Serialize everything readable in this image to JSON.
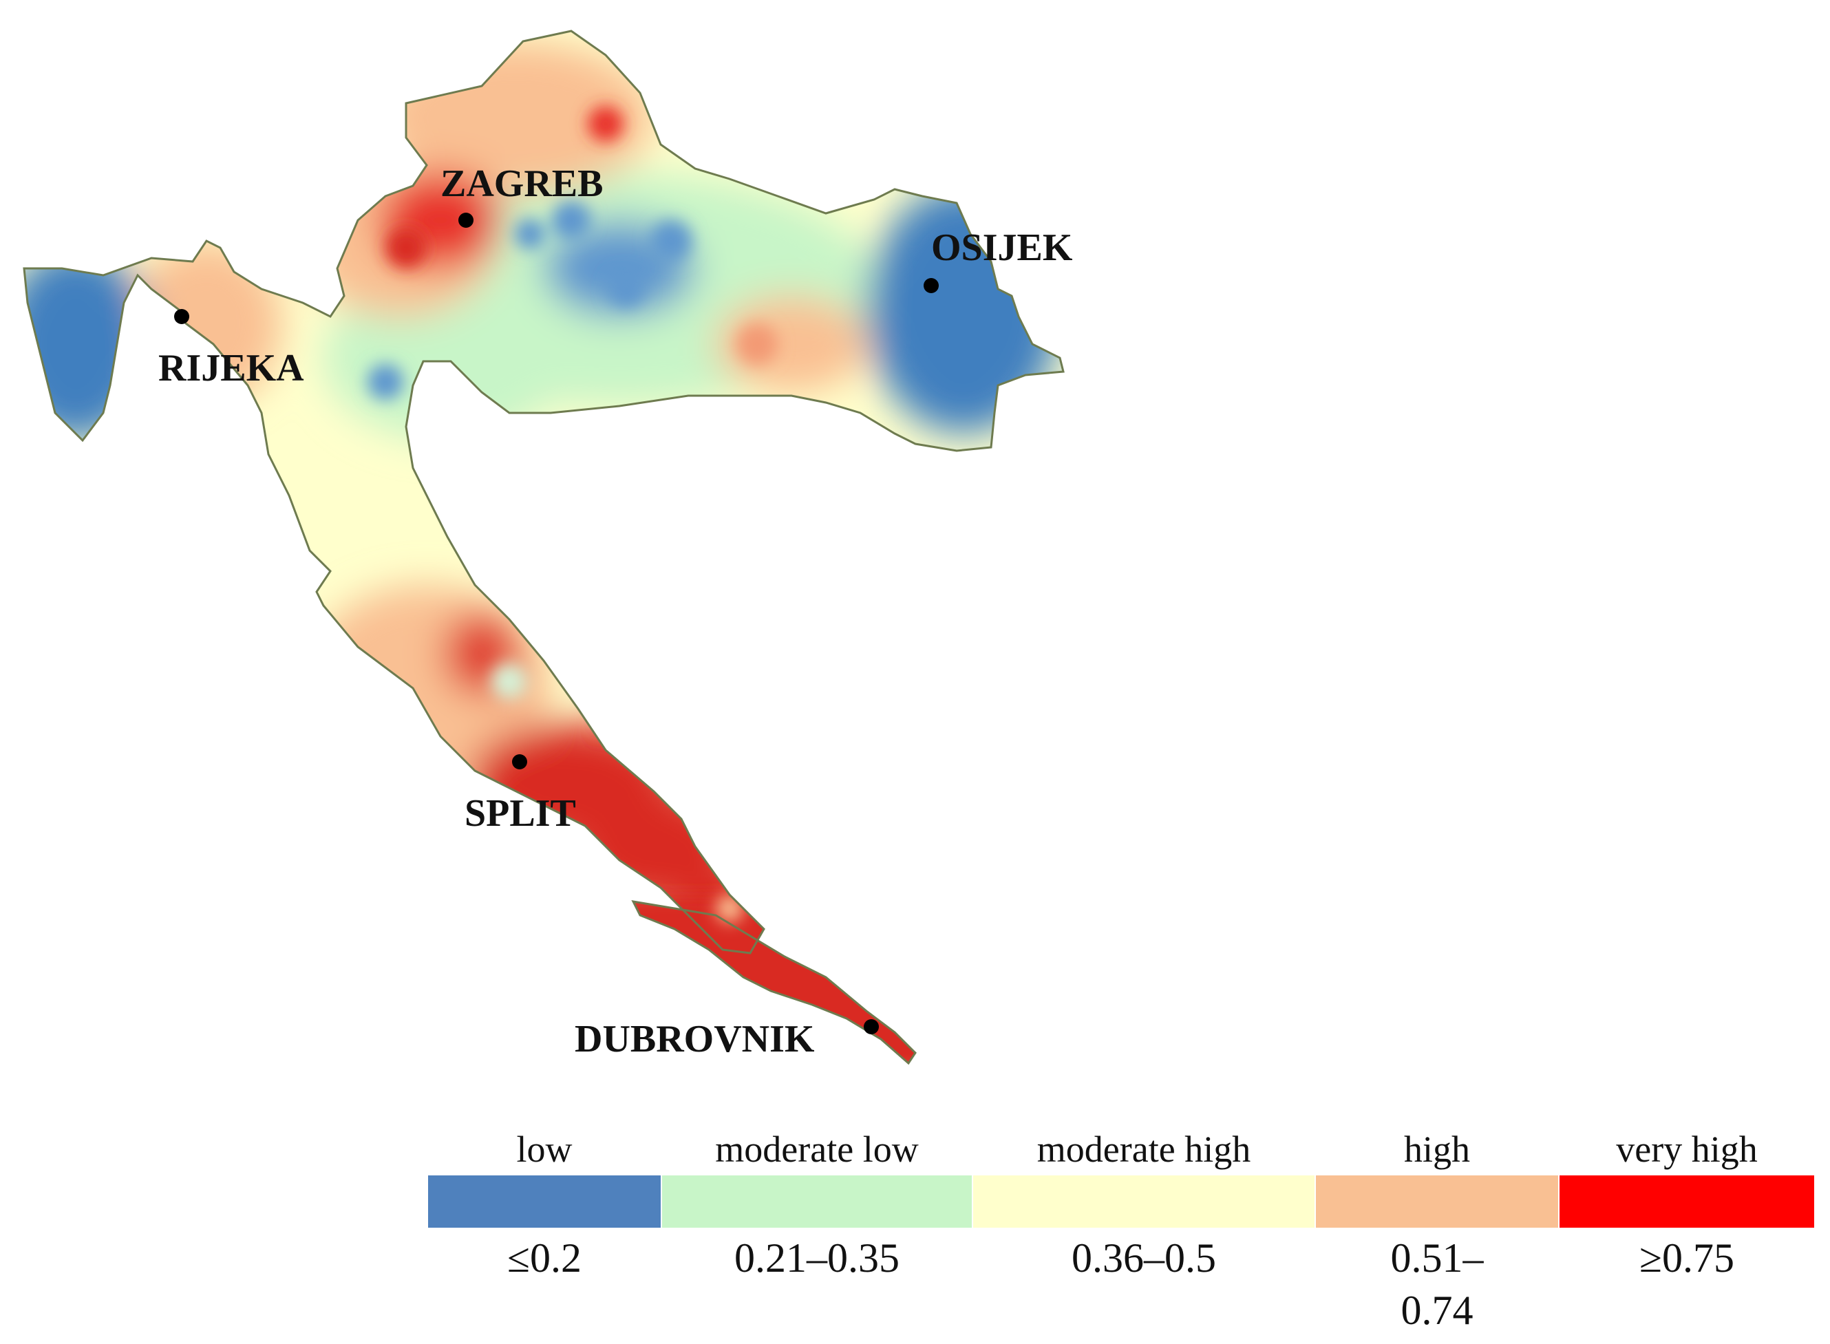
{
  "map": {
    "cities": [
      {
        "id": "zagreb",
        "name": "ZAGREB"
      },
      {
        "id": "osijek",
        "name": "OSIJEK"
      },
      {
        "id": "rijeka",
        "name": "RIJEKA"
      },
      {
        "id": "split",
        "name": "SPLIT"
      },
      {
        "id": "dubrovnik",
        "name": "DUBROVNIK"
      }
    ],
    "colors": {
      "low": "#4f81bd",
      "moderate_low": "#c8f5c8",
      "moderate_high": "#ffffcc",
      "high": "#f9c093",
      "very_high": "#ff0000"
    }
  },
  "legend": {
    "classes": [
      {
        "label": "low",
        "range": "≤0.2",
        "color": "#4f81bd"
      },
      {
        "label": "moderate low",
        "range": "0.21–0.35",
        "color": "#c8f5c8"
      },
      {
        "label": "moderate high",
        "range": "0.36–0.5",
        "color": "#ffffcc"
      },
      {
        "label": "high",
        "range": "0.51–\n0.74",
        "color": "#f9c093"
      },
      {
        "label": "very high",
        "range": "≥0.75",
        "color": "#ff0000"
      }
    ]
  }
}
